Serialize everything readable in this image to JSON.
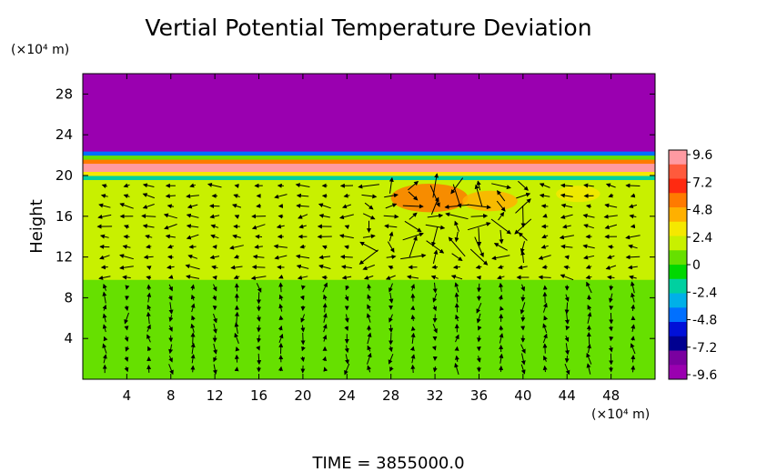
{
  "chart_data": {
    "type": "heatmap",
    "title": "Vertial Potential Temperature Deviation",
    "ylabel": "Height",
    "y_unit": "(×10⁴ m)",
    "x_unit": "(×10⁴ m)",
    "footer": "TIME  =  3855000.0",
    "xlim": [
      0,
      52
    ],
    "ylim": [
      0,
      30
    ],
    "x_ticks": [
      "4",
      "8",
      "12",
      "16",
      "20",
      "24",
      "28",
      "32",
      "36",
      "40",
      "44",
      "48"
    ],
    "y_ticks": [
      "4",
      "8",
      "12",
      "16",
      "20",
      "24",
      "28"
    ],
    "colorbar": {
      "range": [
        -9.6,
        9.6
      ],
      "ticks": [
        "9.6",
        "7.2",
        "4.8",
        "2.4",
        "0",
        "-2.4",
        "-4.8",
        "-7.2",
        "-9.6"
      ],
      "colors": [
        "#ff9aa2",
        "#ff5a3c",
        "#ff2a10",
        "#ff7a00",
        "#ffb000",
        "#f5e800",
        "#c8f000",
        "#66e000",
        "#00d800",
        "#00d0a0",
        "#00b0e8",
        "#0070ff",
        "#0010d8",
        "#000090",
        "#7a00a0",
        "#9a00b0"
      ]
    },
    "bands": [
      {
        "y0": 0.0,
        "y1": 9.8,
        "value": 1.0
      },
      {
        "y0": 9.8,
        "y1": 19.0,
        "value": 2.4
      },
      {
        "y0": 19.0,
        "y1": 19.6,
        "value": 1.3
      },
      {
        "y0": 19.6,
        "y1": 20.0,
        "value": -1.2
      },
      {
        "y0": 20.0,
        "y1": 20.4,
        "value": 3.6
      },
      {
        "y0": 20.4,
        "y1": 21.2,
        "value": 8.5
      },
      {
        "y0": 21.2,
        "y1": 21.6,
        "value": 5.5
      },
      {
        "y0": 21.6,
        "y1": 22.0,
        "value": 1.0
      },
      {
        "y0": 22.0,
        "y1": 22.4,
        "value": -4.0
      },
      {
        "y0": 22.4,
        "y1": 30.0,
        "value": -9.6
      }
    ],
    "hotspots": [
      {
        "x": 31.5,
        "y": 17.8,
        "rx": 3.5,
        "ry": 1.4,
        "value": 5.0
      },
      {
        "x": 37.0,
        "y": 17.5,
        "rx": 2.5,
        "ry": 1.0,
        "value": 4.0
      },
      {
        "x": 45.0,
        "y": 18.2,
        "rx": 2.0,
        "ry": 0.8,
        "value": 3.6
      }
    ],
    "vector_field": {
      "x0": 2.0,
      "dx": 2.0,
      "nx": 25,
      "y0": 1.0,
      "dy": 1.0,
      "ny": 19,
      "lower_layer_top": 10,
      "strong_region": {
        "x0": 26,
        "x1": 40,
        "y0": 12,
        "y1": 20
      }
    }
  }
}
